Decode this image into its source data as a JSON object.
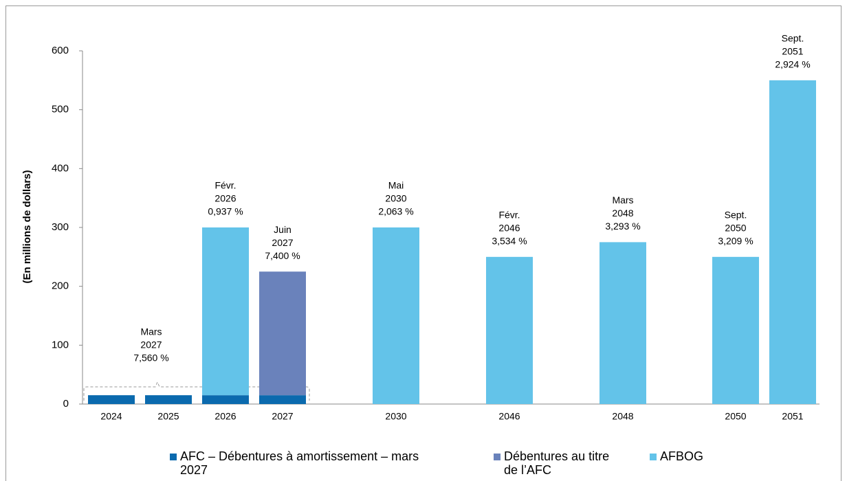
{
  "chart_data": {
    "type": "bar",
    "stacked": true,
    "y_label": "(En millions de dollars)",
    "categories": [
      "2024",
      "2025",
      "2026",
      "2027",
      "2030",
      "2046",
      "2048",
      "2050",
      "2051"
    ],
    "series": [
      {
        "name": "AFC – Débentures à amortissement – mars 2027",
        "color": "#0b6aae",
        "values": [
          15,
          15,
          15,
          15,
          null,
          null,
          null,
          null,
          null
        ]
      },
      {
        "name": "Débentures au titre de l’AFC",
        "color": "#6a82bb",
        "values": [
          null,
          null,
          null,
          210,
          null,
          null,
          null,
          null,
          null
        ]
      },
      {
        "name": "AFBOG",
        "color": "#63c3e9",
        "values": [
          null,
          null,
          285,
          null,
          300,
          250,
          275,
          250,
          550
        ]
      }
    ],
    "bar_labels": [
      null,
      null,
      [
        "Févr.",
        "2026",
        "0,937 %"
      ],
      [
        "Juin",
        "2027",
        "7,400 %"
      ],
      [
        "Mai",
        "2030",
        "2,063 %"
      ],
      [
        "Févr.",
        "2046",
        "3,534 %"
      ],
      [
        "Mars",
        "2048",
        "3,293 %"
      ],
      [
        "Sept.",
        "2050",
        "3,209 %"
      ],
      [
        "Sept.",
        "2051",
        "2,924 %"
      ]
    ],
    "bracket_label": [
      "Mars",
      "2027",
      "7,560 %"
    ],
    "ylim": [
      0,
      600
    ],
    "yticks": [
      0,
      100,
      200,
      300,
      400,
      500,
      600
    ],
    "grid": false
  }
}
